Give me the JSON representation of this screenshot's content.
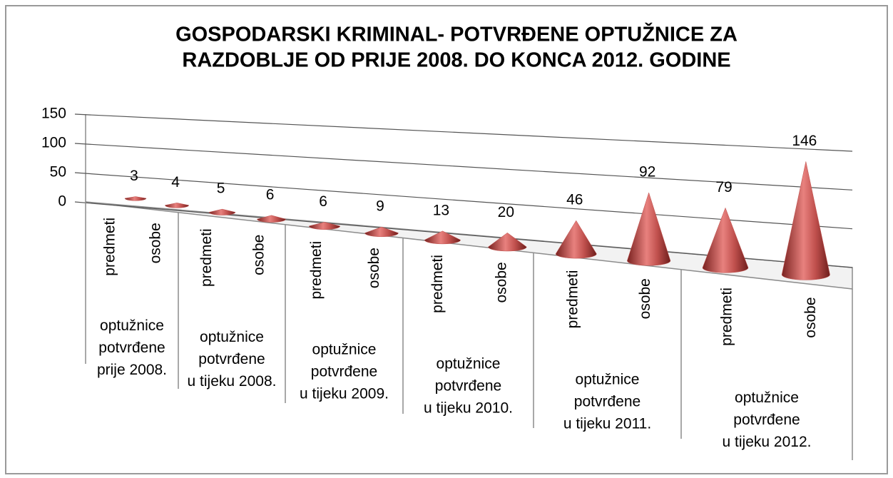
{
  "chart_data": {
    "type": "cone",
    "title": [
      "GOSPODARSKI KRIMINAL- POTVRĐENE OPTUŽNICE ZA",
      "RAZDOBLJE OD PRIJE 2008. DO KONCA 2012. GODINE"
    ],
    "categories": [
      "predmeti",
      "osobe",
      "predmeti",
      "osobe",
      "predmeti",
      "osobe",
      "predmeti",
      "osobe",
      "predmeti",
      "osobe",
      "predmeti",
      "osobe"
    ],
    "groups": [
      [
        "optužnice",
        "potvrđene",
        "prije 2008."
      ],
      [
        "optužnice",
        "potvrđene",
        "u tijeku 2008."
      ],
      [
        "optužnice",
        "potvrđene",
        "u tijeku 2009."
      ],
      [
        "optužnice",
        "potvrđene",
        "u tijeku 2010."
      ],
      [
        "optužnice",
        "potvrđene",
        "u tijeku 2011."
      ],
      [
        "optužnice",
        "potvrđene",
        "u tijeku 2012."
      ]
    ],
    "values": [
      3,
      4,
      5,
      6,
      6,
      9,
      13,
      20,
      46,
      92,
      79,
      146
    ],
    "color": "#c0504d",
    "ylim": [
      0,
      150
    ],
    "yticks": [
      0,
      50,
      100,
      150
    ],
    "grid": true
  }
}
